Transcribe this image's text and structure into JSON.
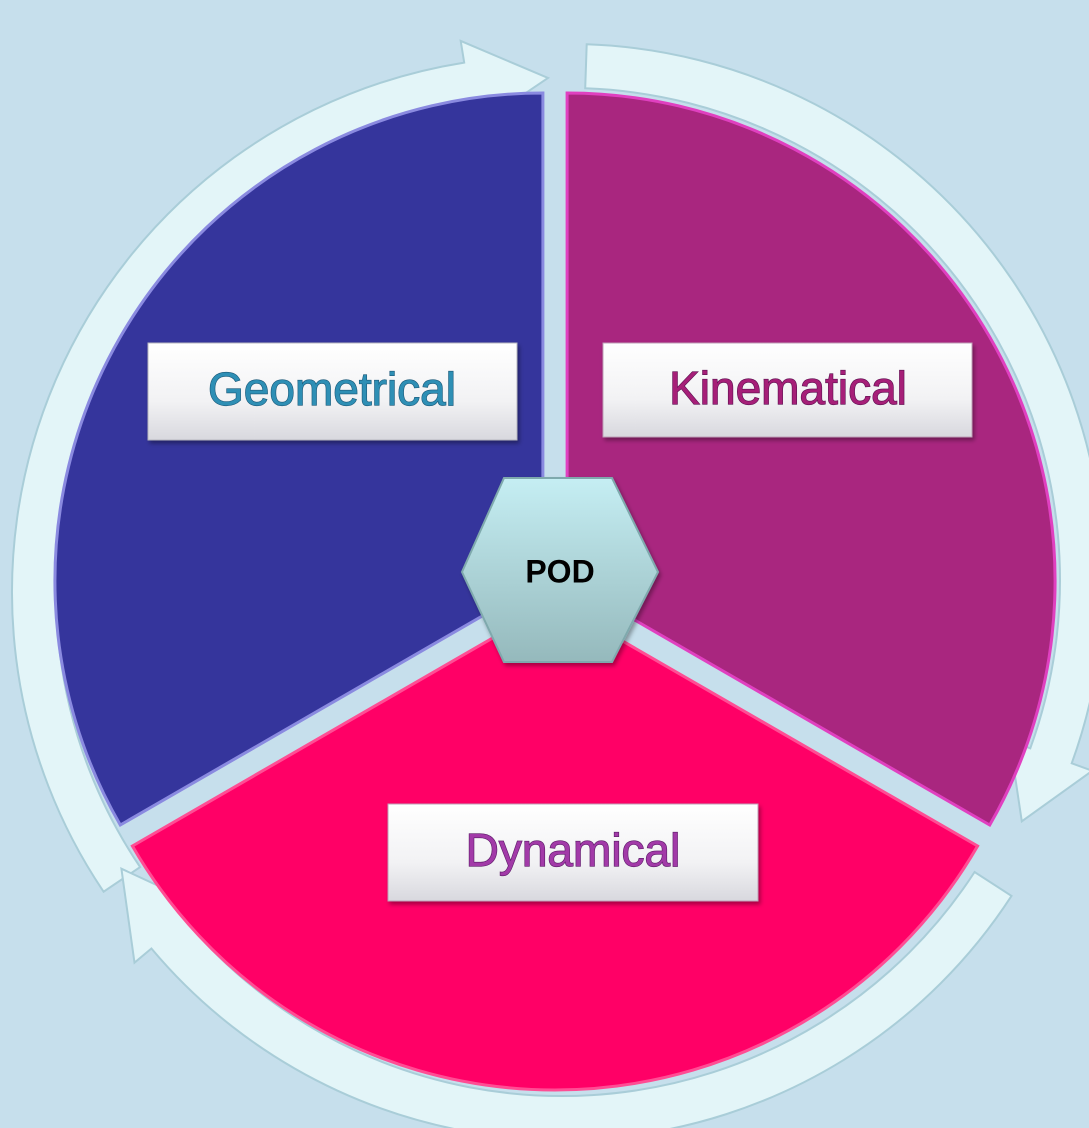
{
  "diagram": {
    "center": "POD",
    "segments": [
      {
        "label": "Geometrical"
      },
      {
        "label": "Kinematical"
      },
      {
        "label": "Dynamical"
      }
    ]
  }
}
